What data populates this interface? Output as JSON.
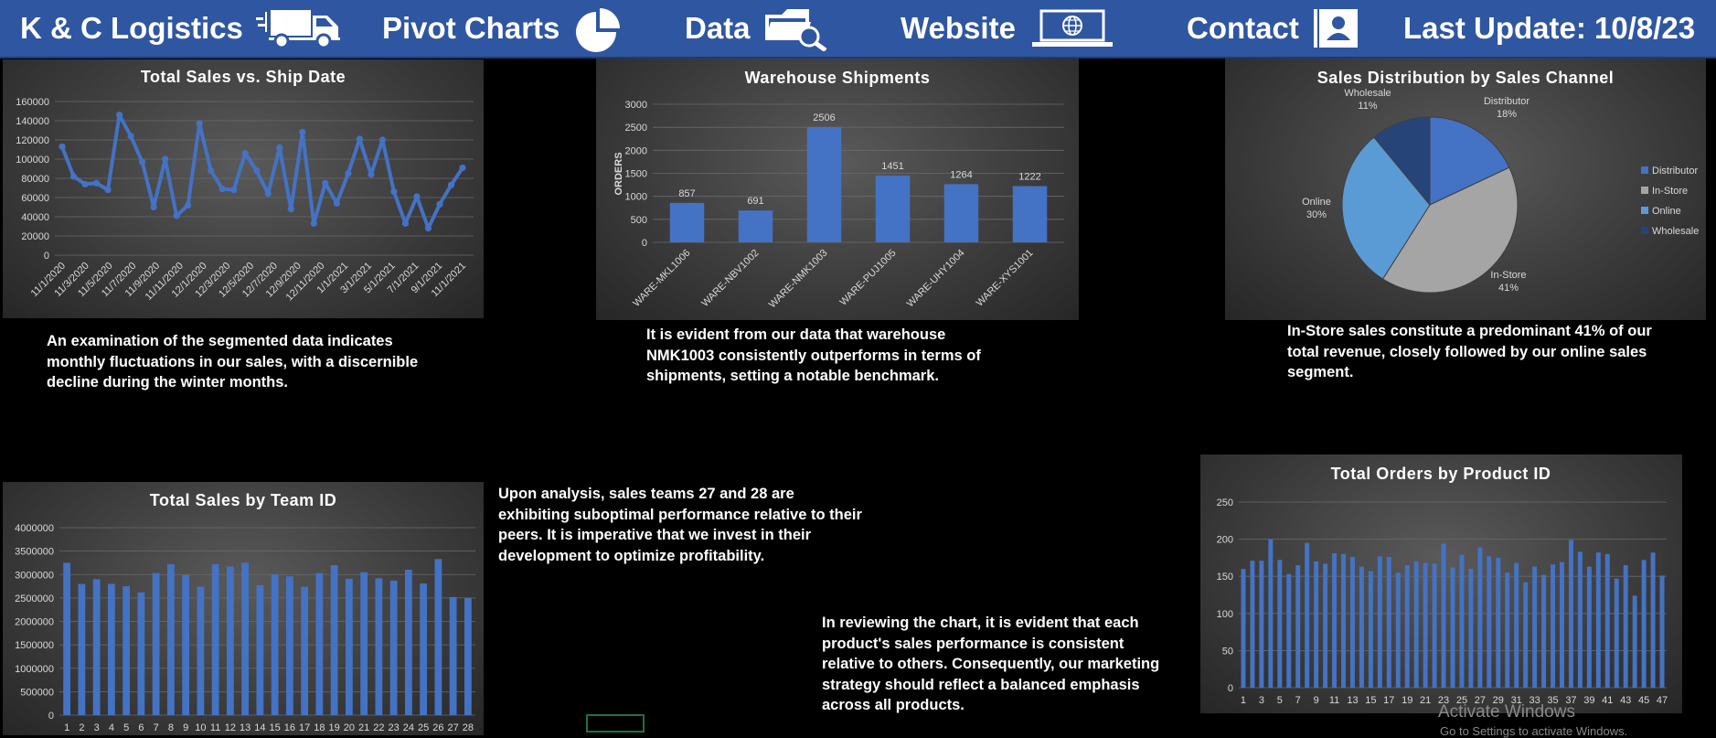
{
  "nav": {
    "brand": "K & C Logistics",
    "pivot": "Pivot Charts",
    "data": "Data",
    "website": "Website",
    "contact": "Contact",
    "last_update": "Last Update: 10/8/23",
    "icons": [
      "truck-icon",
      "pie-chart-icon",
      "folder-search-icon",
      "laptop-globe-icon",
      "contact-card-icon"
    ]
  },
  "notes": {
    "sales_ship": "An examination of the segmented data indicates monthly fluctuations in our sales, with a discernible decline during the winter months.",
    "warehouse": "It is evident from our data that warehouse NMK1003 consistently outperforms in terms of shipments, setting a notable benchmark.",
    "channel": "In-Store sales constitute a predominant 41% of our total revenue, closely followed by our online sales segment.",
    "teams": "Upon analysis, sales teams 27 and 28 are exhibiting suboptimal performance relative to their peers. It is imperative that we invest in their development to optimize profitability.",
    "products": "In reviewing the chart, it is evident that each product's sales performance is consistent relative to others. Consequently, our marketing strategy should reflect a balanced emphasis across all products."
  },
  "watermark": {
    "title": "Activate Windows",
    "subtitle": "Go to Settings to activate Windows."
  },
  "chart_data": [
    {
      "id": "sales-vs-ship",
      "type": "line",
      "title": "Total Sales vs. Ship Date",
      "ylim": [
        0,
        160000
      ],
      "yticks": [
        0,
        20000,
        40000,
        60000,
        80000,
        100000,
        120000,
        140000,
        160000
      ],
      "xticklabels": [
        "11/1/2020",
        "11/3/2020",
        "11/5/2020",
        "11/7/2020",
        "11/9/2020",
        "11/11/2020",
        "12/1/2020",
        "12/3/2020",
        "12/5/2020",
        "12/7/2020",
        "12/9/2020",
        "12/11/2020",
        "1/1/2021",
        "3/1/2021",
        "5/1/2021",
        "7/1/2021",
        "9/1/2021",
        "11/1/2021"
      ],
      "values": [
        113000,
        82000,
        74000,
        75000,
        68000,
        146000,
        124000,
        97000,
        50000,
        100000,
        41000,
        52000,
        137000,
        88000,
        69000,
        68000,
        106000,
        88000,
        64000,
        112000,
        48000,
        128000,
        33000,
        75000,
        54000,
        85000,
        121000,
        84000,
        120000,
        66000,
        33000,
        61000,
        28000,
        53000,
        73000,
        91000
      ],
      "color": "#4472c4",
      "grid": true
    },
    {
      "id": "warehouse-shipments",
      "type": "bar",
      "title": "Warehouse Shipments",
      "ylabel": "ORDERS",
      "ylim": [
        0,
        3000
      ],
      "yticks": [
        0,
        500,
        1000,
        1500,
        2000,
        2500,
        3000
      ],
      "categories": [
        "WARE-MKL1006",
        "WARE-NBV1002",
        "WARE-NMK1003",
        "WARE-PUJ1005",
        "WARE-UHY1004",
        "WARE-XYS1001"
      ],
      "values": [
        857,
        691,
        2506,
        1451,
        1264,
        1222
      ],
      "color": "#4472c4"
    },
    {
      "id": "sales-by-channel",
      "type": "pie",
      "title": "Sales Distribution by Sales Channel",
      "slices": [
        {
          "name": "Distributor",
          "percent": 18,
          "label": "18%",
          "color": "#4472c4"
        },
        {
          "name": "In-Store",
          "percent": 41,
          "label": "41%",
          "color": "#a5a5a5"
        },
        {
          "name": "Online",
          "percent": 30,
          "label": "30%",
          "color": "#5b9bd5"
        },
        {
          "name": "Wholesale",
          "percent": 11,
          "label": "11%",
          "color": "#264478"
        }
      ],
      "legend": "right"
    },
    {
      "id": "sales-by-team",
      "type": "bar",
      "title": "Total Sales by Team ID",
      "ylim": [
        0,
        4000000
      ],
      "yticks": [
        0,
        500000,
        1000000,
        1500000,
        2000000,
        2500000,
        3000000,
        3500000,
        4000000
      ],
      "categories": [
        "1",
        "2",
        "3",
        "4",
        "5",
        "6",
        "7",
        "8",
        "9",
        "10",
        "11",
        "12",
        "13",
        "14",
        "15",
        "16",
        "17",
        "18",
        "19",
        "20",
        "21",
        "22",
        "23",
        "24",
        "25",
        "26",
        "27",
        "28"
      ],
      "values": [
        3250000,
        2800000,
        2900000,
        2800000,
        2750000,
        2620000,
        3030000,
        3220000,
        2990000,
        2740000,
        3220000,
        3170000,
        3250000,
        2770000,
        3000000,
        2960000,
        2740000,
        3030000,
        3200000,
        2910000,
        3050000,
        2920000,
        2870000,
        3100000,
        2810000,
        3330000,
        2520000,
        2500000
      ],
      "color": "#4472c4"
    },
    {
      "id": "orders-by-product",
      "type": "bar",
      "title": "Total Orders by Product ID",
      "ylim": [
        0,
        250
      ],
      "yticks": [
        0,
        50,
        100,
        150,
        200,
        250
      ],
      "categories": [
        "1",
        "2",
        "3",
        "4",
        "5",
        "6",
        "7",
        "8",
        "9",
        "10",
        "11",
        "12",
        "13",
        "14",
        "15",
        "16",
        "17",
        "18",
        "19",
        "20",
        "21",
        "22",
        "23",
        "24",
        "25",
        "26",
        "27",
        "28",
        "29",
        "30",
        "31",
        "32",
        "33",
        "34",
        "35",
        "36",
        "37",
        "38",
        "39",
        "40",
        "41",
        "42",
        "43",
        "44",
        "45",
        "46",
        "47"
      ],
      "xticklabels": [
        "1",
        "3",
        "5",
        "7",
        "9",
        "11",
        "13",
        "15",
        "17",
        "19",
        "21",
        "23",
        "25",
        "27",
        "29",
        "31",
        "33",
        "35",
        "37",
        "39",
        "41",
        "43",
        "45",
        "47"
      ],
      "values": [
        160,
        171,
        171,
        200,
        172,
        153,
        165,
        195,
        170,
        167,
        181,
        180,
        176,
        163,
        157,
        177,
        176,
        155,
        165,
        170,
        168,
        167,
        194,
        162,
        179,
        160,
        189,
        177,
        175,
        155,
        168,
        142,
        163,
        152,
        166,
        169,
        199,
        183,
        163,
        182,
        180,
        147,
        165,
        124,
        172,
        182,
        151
      ],
      "color": "#4472c4"
    }
  ]
}
